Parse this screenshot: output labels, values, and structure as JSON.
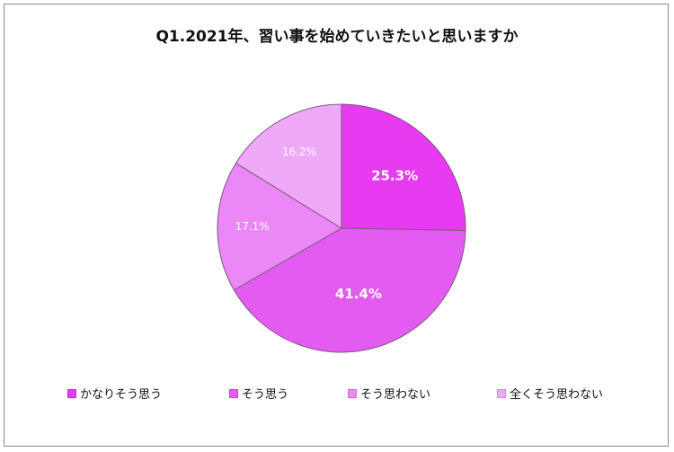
{
  "chart_data": {
    "type": "pie",
    "title": "Q1.2021年、習い事を始めていきたいと思いますか",
    "slices": [
      {
        "label": "かなりそう思う",
        "value": 25.3,
        "value_label": "25.3%",
        "color": "#e83af0",
        "label_color": "#ffffff",
        "label_bold": true
      },
      {
        "label": "そう思う",
        "value": 41.4,
        "value_label": "41.4%",
        "color": "#e45bf2",
        "label_color": "#ffffff",
        "label_bold": true
      },
      {
        "label": "そう思わない",
        "value": 17.1,
        "value_label": "17.1%",
        "color": "#eb87f6",
        "label_color": "#ffffff",
        "label_bold": false
      },
      {
        "label": "全くそう思わない",
        "value": 16.2,
        "value_label": "16.2%",
        "color": "#f0a8f9",
        "label_color": "#ffffff",
        "label_bold": false
      }
    ],
    "start_angle_deg": 0,
    "direction": "clockwise",
    "legend_position": "bottom"
  }
}
